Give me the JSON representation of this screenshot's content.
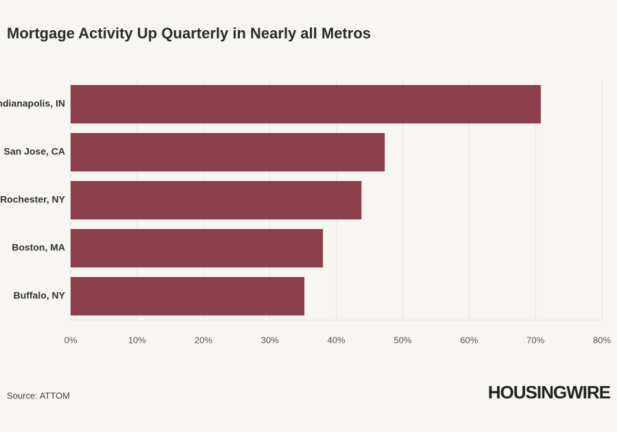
{
  "chart_data": {
    "type": "barh",
    "title": "Mortgage Activity Up Quarterly in Nearly all Metros",
    "categories": [
      "Indianapolis, IN",
      "San Jose, CA",
      "Rochester, NY",
      "Boston, MA",
      "Buffalo, NY"
    ],
    "values": [
      70.8,
      47.3,
      43.8,
      38.0,
      35.2
    ],
    "color": "#8b3f4a",
    "xlim": [
      0,
      80
    ],
    "xticks": [
      {
        "value": 0,
        "label": "0%"
      },
      {
        "value": 10,
        "label": "10%"
      },
      {
        "value": 20,
        "label": "20%"
      },
      {
        "value": 30,
        "label": "30%"
      },
      {
        "value": 40,
        "label": "40%"
      },
      {
        "value": 50,
        "label": "50%"
      },
      {
        "value": 60,
        "label": "60%"
      },
      {
        "value": 70,
        "label": "70%"
      },
      {
        "value": 80,
        "label": "80%"
      }
    ],
    "grid": true,
    "source": "Source: ATTOM",
    "brand": "HOUSINGWIRE"
  }
}
